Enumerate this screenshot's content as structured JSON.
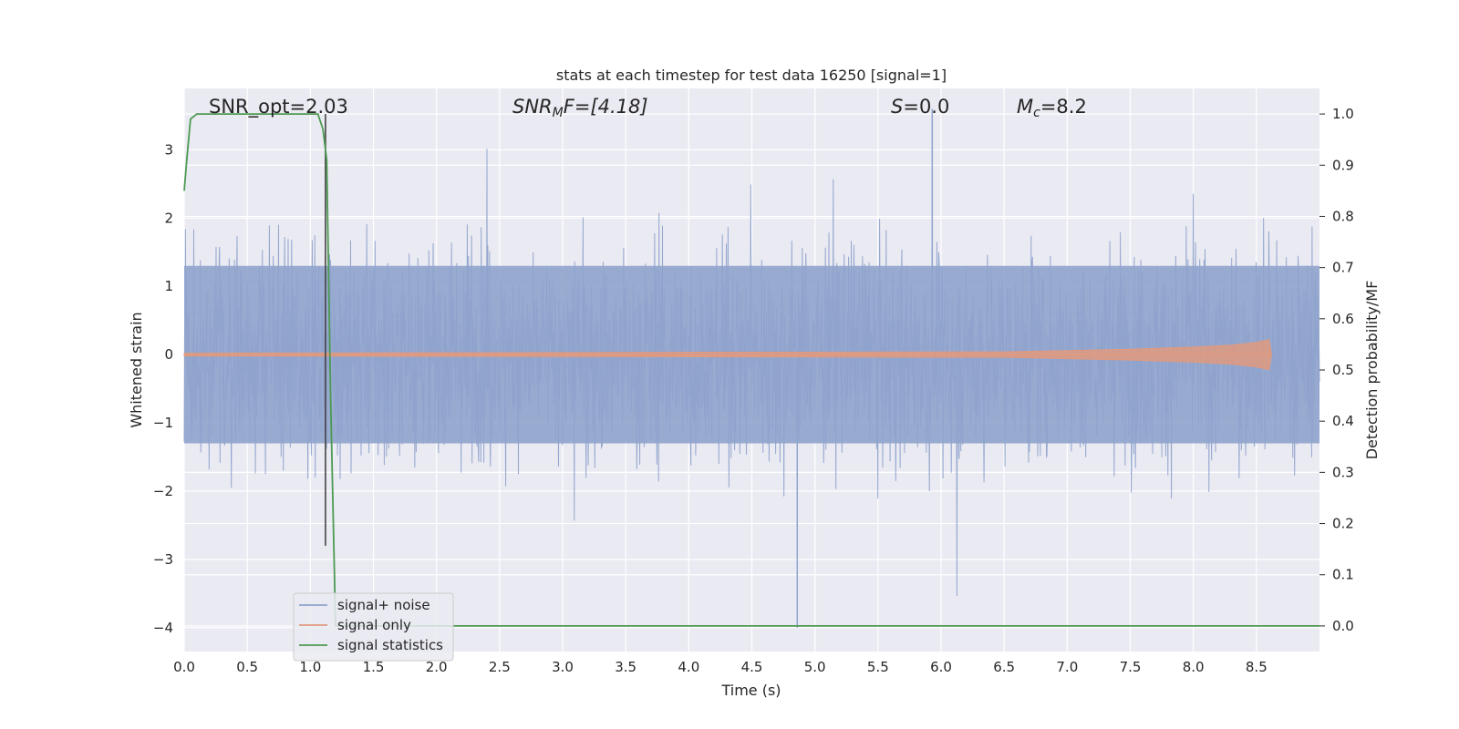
{
  "chart_data": {
    "type": "line",
    "title": "stats at each timestep for test data 16250 [signal=1]",
    "xlabel": "Time (s)",
    "ylabel_left": "Whitened strain",
    "ylabel_right": "Detection probability/MF",
    "xlim": [
      0.0,
      9.0
    ],
    "ylim_left": [
      -4.35,
      3.9
    ],
    "ylim_right": [
      -0.05,
      1.05
    ],
    "x_ticks": [
      "0.0",
      "0.5",
      "1.0",
      "1.5",
      "2.0",
      "2.5",
      "3.0",
      "3.5",
      "4.0",
      "4.5",
      "5.0",
      "5.5",
      "6.0",
      "6.5",
      "7.0",
      "7.5",
      "8.0",
      "8.5"
    ],
    "y_ticks_left": [
      "3",
      "2",
      "1",
      "0",
      "−1",
      "−2",
      "−3",
      "−4"
    ],
    "y_ticks_right": [
      "1.0",
      "0.9",
      "0.8",
      "0.7",
      "0.6",
      "0.5",
      "0.4",
      "0.3",
      "0.2",
      "0.1",
      "0.0"
    ],
    "grid": true,
    "legend_position": "lower-left",
    "annotations": {
      "snr_opt": "SNR_opt=2.03",
      "snr_mf_main": "SNR",
      "snr_mf_sub": "M",
      "snr_mf_rest": "F=[4.18]",
      "s_main": "S",
      "s_rest": "=0.0",
      "mc_main": "M",
      "mc_sub": "c",
      "mc_rest": "=8.2"
    },
    "vline_x": 1.12,
    "series": [
      {
        "name": "signal+ noise",
        "color": "#8fa3cc",
        "axis": "left",
        "description_values": {
          "core_band": [
            -1.3,
            1.3
          ],
          "typical_peaks": [
            2.8,
            -3.1
          ],
          "extreme_min": -4.0,
          "extreme_max": 3.6
        }
      },
      {
        "name": "signal only",
        "color": "#e09a7f",
        "axis": "left",
        "x": [
          0.0,
          6.5,
          7.0,
          7.5,
          8.0,
          8.3,
          8.5,
          8.6,
          8.62
        ],
        "envelope": [
          0.02,
          0.04,
          0.06,
          0.08,
          0.11,
          0.14,
          0.18,
          0.22,
          0.0
        ]
      },
      {
        "name": "signal statistics",
        "color": "#4c9a52",
        "axis": "right",
        "x": [
          0.0,
          0.02,
          0.05,
          0.1,
          0.2,
          0.4,
          0.6,
          0.8,
          1.0,
          1.06,
          1.1,
          1.13,
          1.16,
          1.2,
          1.3,
          2.0,
          3.0,
          4.0,
          5.0,
          6.0,
          7.0,
          8.0,
          9.0
        ],
        "values": [
          0.85,
          0.91,
          0.99,
          1.0,
          1.0,
          1.0,
          1.0,
          1.0,
          1.0,
          1.0,
          0.97,
          0.91,
          0.45,
          0.0,
          0.0,
          0.0,
          0.0,
          0.0,
          0.0,
          0.0,
          0.0,
          0.0,
          0.0
        ]
      }
    ]
  }
}
